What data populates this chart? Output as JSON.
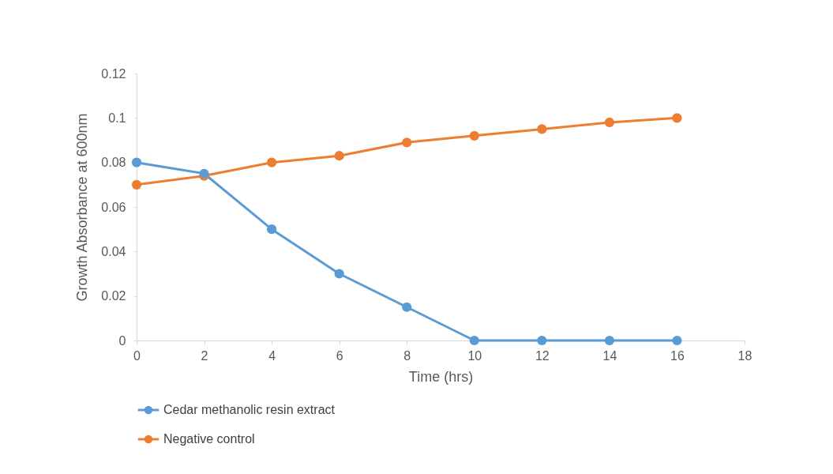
{
  "chart_data": {
    "type": "line",
    "xlabel": "Time (hrs)",
    "ylabel": "Growth Absorbance  at 600nm",
    "x": [
      0,
      2,
      4,
      6,
      8,
      10,
      12,
      14,
      16
    ],
    "series": [
      {
        "name": "Cedar methanolic resin extract",
        "color": "#5b9bd5",
        "values": [
          0.08,
          0.075,
          0.05,
          0.03,
          0.015,
          0,
          0,
          0,
          0
        ]
      },
      {
        "name": "Negative control",
        "color": "#ed7d31",
        "values": [
          0.07,
          0.074,
          0.08,
          0.083,
          0.089,
          0.092,
          0.095,
          0.098,
          0.1
        ]
      }
    ],
    "xlim": [
      0,
      18
    ],
    "xticks": [
      0,
      2,
      4,
      6,
      8,
      10,
      12,
      14,
      16,
      18
    ],
    "ylim": [
      0,
      0.12
    ],
    "yticks": [
      0,
      0.02,
      0.04,
      0.06,
      0.08,
      0.1,
      0.12
    ],
    "grid": false,
    "legend": "bottom",
    "marker": "circle",
    "line_style": "solid"
  }
}
